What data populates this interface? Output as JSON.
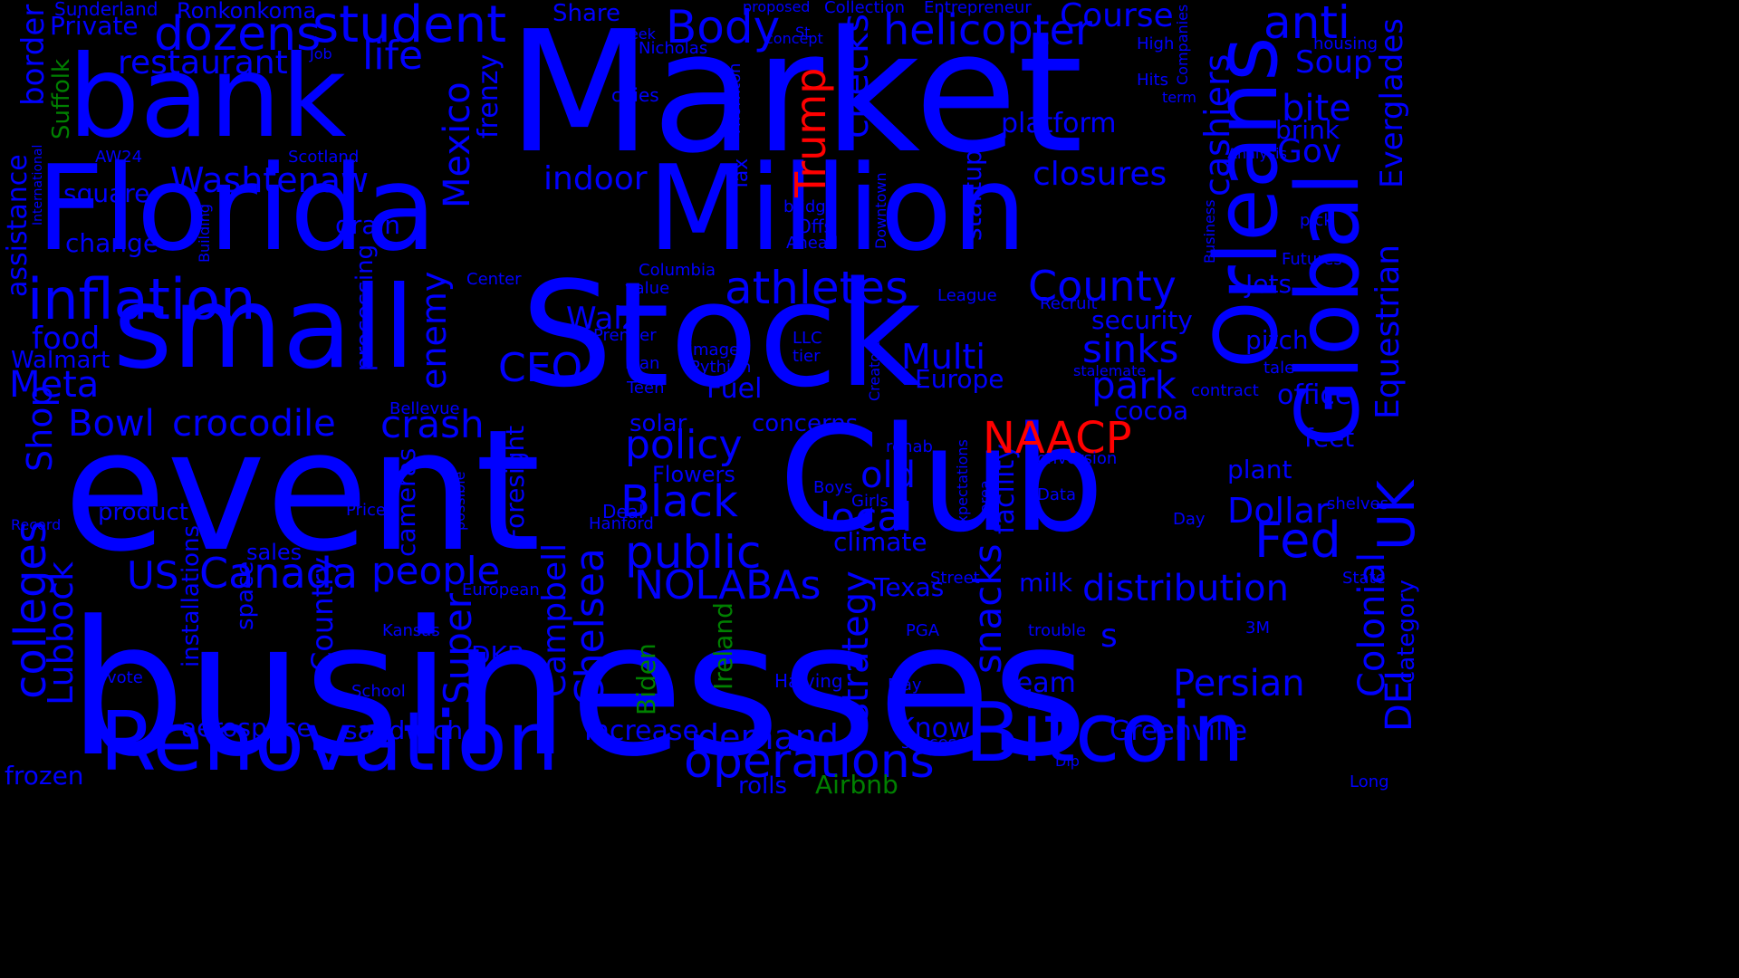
{
  "colors": {
    "background": "#000000",
    "blue": "#0000ff",
    "green": "#008000",
    "red": "#ff0000"
  },
  "words": [
    {
      "text": "businesses",
      "color": "blue"
    },
    {
      "text": "event",
      "color": "blue"
    },
    {
      "text": "Market",
      "color": "blue"
    },
    {
      "text": "Stock",
      "color": "blue"
    },
    {
      "text": "Club",
      "color": "blue"
    },
    {
      "text": "Florida",
      "color": "blue"
    },
    {
      "text": "Million",
      "color": "blue"
    },
    {
      "text": "small",
      "color": "blue"
    },
    {
      "text": "bank",
      "color": "blue"
    },
    {
      "text": "Renovation",
      "color": "blue"
    },
    {
      "text": "Bitcoin",
      "color": "blue"
    },
    {
      "text": "Orleans",
      "color": "blue"
    },
    {
      "text": "Global",
      "color": "blue"
    },
    {
      "text": "inflation",
      "color": "blue"
    },
    {
      "text": "student",
      "color": "blue"
    },
    {
      "text": "dozens",
      "color": "blue"
    },
    {
      "text": "helicopter",
      "color": "blue"
    },
    {
      "text": "anti",
      "color": "blue"
    },
    {
      "text": "Body",
      "color": "blue"
    },
    {
      "text": "life",
      "color": "blue"
    },
    {
      "text": "restaurant",
      "color": "blue"
    },
    {
      "text": "Course",
      "color": "blue"
    },
    {
      "text": "Soup",
      "color": "blue"
    },
    {
      "text": "bite",
      "color": "blue"
    },
    {
      "text": "brink",
      "color": "blue"
    },
    {
      "text": "Gov",
      "color": "blue"
    },
    {
      "text": "platform",
      "color": "blue"
    },
    {
      "text": "closures",
      "color": "blue"
    },
    {
      "text": "cashiers",
      "color": "blue"
    },
    {
      "text": "Everglades",
      "color": "blue"
    },
    {
      "text": "Equestrian",
      "color": "blue"
    },
    {
      "text": "indoor",
      "color": "blue"
    },
    {
      "text": "checks",
      "color": "blue"
    },
    {
      "text": "Mexico",
      "color": "blue"
    },
    {
      "text": "frenzy",
      "color": "blue"
    },
    {
      "text": "Washtenaw",
      "color": "blue"
    },
    {
      "text": "border",
      "color": "blue"
    },
    {
      "text": "assistance",
      "color": "blue"
    },
    {
      "text": "square",
      "color": "blue"
    },
    {
      "text": "change",
      "color": "blue"
    },
    {
      "text": "grain",
      "color": "blue"
    },
    {
      "text": "food",
      "color": "blue"
    },
    {
      "text": "Walmart",
      "color": "blue"
    },
    {
      "text": "Meta",
      "color": "blue"
    },
    {
      "text": "Shop",
      "color": "blue"
    },
    {
      "text": "Bowl",
      "color": "blue"
    },
    {
      "text": "crocodile",
      "color": "blue"
    },
    {
      "text": "crash",
      "color": "blue"
    },
    {
      "text": "CEO",
      "color": "blue"
    },
    {
      "text": "enemy",
      "color": "blue"
    },
    {
      "text": "processing",
      "color": "blue"
    },
    {
      "text": "Walz",
      "color": "blue"
    },
    {
      "text": "athletes",
      "color": "blue"
    },
    {
      "text": "County",
      "color": "blue"
    },
    {
      "text": "security",
      "color": "blue"
    },
    {
      "text": "Multi",
      "color": "blue"
    },
    {
      "text": "Europe",
      "color": "blue"
    },
    {
      "text": "sinks",
      "color": "blue"
    },
    {
      "text": "park",
      "color": "blue"
    },
    {
      "text": "cocoa",
      "color": "blue"
    },
    {
      "text": "startup",
      "color": "blue"
    },
    {
      "text": "Jets",
      "color": "blue"
    },
    {
      "text": "pitch",
      "color": "blue"
    },
    {
      "text": "office",
      "color": "blue"
    },
    {
      "text": "feet",
      "color": "blue"
    },
    {
      "text": "plant",
      "color": "blue"
    },
    {
      "text": "Dollar",
      "color": "blue"
    },
    {
      "text": "Fed",
      "color": "blue"
    },
    {
      "text": "UK",
      "color": "blue"
    },
    {
      "text": "policy",
      "color": "blue"
    },
    {
      "text": "Fuel",
      "color": "blue"
    },
    {
      "text": "concerns",
      "color": "blue"
    },
    {
      "text": "solar",
      "color": "blue"
    },
    {
      "text": "old",
      "color": "blue"
    },
    {
      "text": "local",
      "color": "blue"
    },
    {
      "text": "climate",
      "color": "blue"
    },
    {
      "text": "Black",
      "color": "blue"
    },
    {
      "text": "public",
      "color": "blue"
    },
    {
      "text": "NOLABAs",
      "color": "blue"
    },
    {
      "text": "Canada",
      "color": "blue"
    },
    {
      "text": "people",
      "color": "blue"
    },
    {
      "text": "US",
      "color": "blue"
    },
    {
      "text": "product",
      "color": "blue"
    },
    {
      "text": "sales",
      "color": "blue"
    },
    {
      "text": "colleges",
      "color": "blue"
    },
    {
      "text": "Lubbock",
      "color": "blue"
    },
    {
      "text": "Country",
      "color": "blue"
    },
    {
      "text": "space",
      "color": "blue"
    },
    {
      "text": "installations",
      "color": "blue"
    },
    {
      "text": "cameras",
      "color": "blue"
    },
    {
      "text": "Foresight",
      "color": "blue"
    },
    {
      "text": "Super",
      "color": "blue"
    },
    {
      "text": "Campbell",
      "color": "blue"
    },
    {
      "text": "Chelsea",
      "color": "blue"
    },
    {
      "text": "DKB",
      "color": "blue"
    },
    {
      "text": "aerospace",
      "color": "blue"
    },
    {
      "text": "sandwich",
      "color": "blue"
    },
    {
      "text": "Increase",
      "color": "blue"
    },
    {
      "text": "demand",
      "color": "blue"
    },
    {
      "text": "operations",
      "color": "blue"
    },
    {
      "text": "Texas",
      "color": "blue"
    },
    {
      "text": "strategy",
      "color": "blue"
    },
    {
      "text": "snacks",
      "color": "blue"
    },
    {
      "text": "facility",
      "color": "blue"
    },
    {
      "text": "milk",
      "color": "blue"
    },
    {
      "text": "distribution",
      "color": "blue"
    },
    {
      "text": "Know",
      "color": "blue"
    },
    {
      "text": "team",
      "color": "blue"
    },
    {
      "text": "Persian",
      "color": "blue"
    },
    {
      "text": "Greenville",
      "color": "blue"
    },
    {
      "text": "Colonial",
      "color": "blue"
    },
    {
      "text": "DEI",
      "color": "blue"
    },
    {
      "text": "category",
      "color": "blue"
    },
    {
      "text": "s",
      "color": "blue"
    },
    {
      "text": "frozen",
      "color": "blue"
    },
    {
      "text": "rolls",
      "color": "blue"
    },
    {
      "text": "Trump",
      "color": "red"
    },
    {
      "text": "NAACP",
      "color": "red"
    },
    {
      "text": "Suffolk",
      "color": "green"
    },
    {
      "text": "Ireland",
      "color": "green"
    },
    {
      "text": "Biden",
      "color": "green"
    },
    {
      "text": "Airbnb",
      "color": "green"
    },
    {
      "text": "Sunderland",
      "color": "blue"
    },
    {
      "text": "Ronkonkoma",
      "color": "blue"
    },
    {
      "text": "Private",
      "color": "blue"
    },
    {
      "text": "Share",
      "color": "blue"
    },
    {
      "text": "proposed",
      "color": "blue"
    },
    {
      "text": "Collection",
      "color": "blue"
    },
    {
      "text": "Entrepreneur",
      "color": "blue"
    },
    {
      "text": "Week",
      "color": "blue"
    },
    {
      "text": "St",
      "color": "blue"
    },
    {
      "text": "Nicholas",
      "color": "blue"
    },
    {
      "text": "concept",
      "color": "blue"
    },
    {
      "text": "Job",
      "color": "blue"
    },
    {
      "text": "cities",
      "color": "blue"
    },
    {
      "text": "Thornton",
      "color": "blue"
    },
    {
      "text": "High",
      "color": "blue"
    },
    {
      "text": "Companies",
      "color": "blue"
    },
    {
      "text": "Hits",
      "color": "blue"
    },
    {
      "text": "term",
      "color": "blue"
    },
    {
      "text": "housing",
      "color": "blue"
    },
    {
      "text": "Analysis",
      "color": "blue"
    },
    {
      "text": "pick",
      "color": "blue"
    },
    {
      "text": "Futures",
      "color": "blue"
    },
    {
      "text": "Business",
      "color": "blue"
    },
    {
      "text": "AW24",
      "color": "blue"
    },
    {
      "text": "Scotland",
      "color": "blue"
    },
    {
      "text": "International",
      "color": "blue"
    },
    {
      "text": "Building",
      "color": "blue"
    },
    {
      "text": "Tax",
      "color": "blue"
    },
    {
      "text": "bridge",
      "color": "blue"
    },
    {
      "text": "Offs",
      "color": "blue"
    },
    {
      "text": "Ahead",
      "color": "blue"
    },
    {
      "text": "Downtown",
      "color": "blue"
    },
    {
      "text": "Columbia",
      "color": "blue"
    },
    {
      "text": "value",
      "color": "blue"
    },
    {
      "text": "Center",
      "color": "blue"
    },
    {
      "text": "League",
      "color": "blue"
    },
    {
      "text": "Recruit",
      "color": "blue"
    },
    {
      "text": "Premier",
      "color": "blue"
    },
    {
      "text": "LLC",
      "color": "blue"
    },
    {
      "text": "tier",
      "color": "blue"
    },
    {
      "text": "images",
      "color": "blue"
    },
    {
      "text": "loan",
      "color": "blue"
    },
    {
      "text": "Pythian",
      "color": "blue"
    },
    {
      "text": "Creators",
      "color": "blue"
    },
    {
      "text": "stalemate",
      "color": "blue"
    },
    {
      "text": "tale",
      "color": "blue"
    },
    {
      "text": "contract",
      "color": "blue"
    },
    {
      "text": "Teen",
      "color": "blue"
    },
    {
      "text": "Bellevue",
      "color": "blue"
    },
    {
      "text": "rehab",
      "color": "blue"
    },
    {
      "text": "conversion",
      "color": "blue"
    },
    {
      "text": "Flowers",
      "color": "blue"
    },
    {
      "text": "Boys",
      "color": "blue"
    },
    {
      "text": "Girls",
      "color": "blue"
    },
    {
      "text": "Data",
      "color": "blue"
    },
    {
      "text": "shelves",
      "color": "blue"
    },
    {
      "text": "Deal",
      "color": "blue"
    },
    {
      "text": "Hanford",
      "color": "blue"
    },
    {
      "text": "Price",
      "color": "blue"
    },
    {
      "text": "possible",
      "color": "blue"
    },
    {
      "text": "Record",
      "color": "blue"
    },
    {
      "text": "expectations",
      "color": "blue"
    },
    {
      "text": "area",
      "color": "blue"
    },
    {
      "text": "Day",
      "color": "blue"
    },
    {
      "text": "European",
      "color": "blue"
    },
    {
      "text": "Street",
      "color": "blue"
    },
    {
      "text": "State",
      "color": "blue"
    },
    {
      "text": "Kansas",
      "color": "blue"
    },
    {
      "text": "PGA",
      "color": "blue"
    },
    {
      "text": "trouble",
      "color": "blue"
    },
    {
      "text": "3M",
      "color": "blue"
    },
    {
      "text": "vote",
      "color": "blue"
    },
    {
      "text": "School",
      "color": "blue"
    },
    {
      "text": "Halving",
      "color": "blue"
    },
    {
      "text": "Play",
      "color": "blue"
    },
    {
      "text": "success",
      "color": "blue"
    },
    {
      "text": "Dip",
      "color": "blue"
    },
    {
      "text": "Long",
      "color": "blue"
    }
  ]
}
